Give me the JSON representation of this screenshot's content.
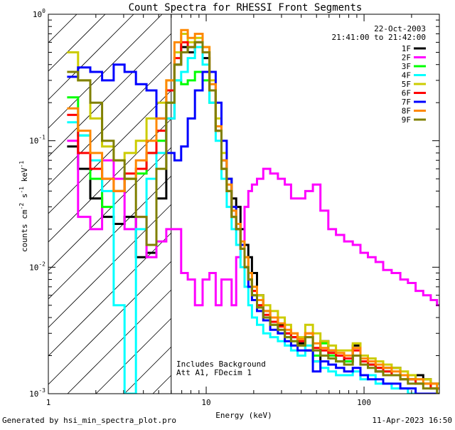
{
  "chart_data": {
    "type": "line",
    "title": "Count Spectra for RHESSI Front Segments",
    "xlabel": "Energy (keV)",
    "ylabel_parts": {
      "counts": "counts cm",
      "exp2": "-2",
      "s": " s",
      "exp1a": "-1",
      "kev": " keV",
      "exp1b": "-1"
    },
    "x_scale": "log",
    "y_scale": "log",
    "xlim": [
      1,
      300
    ],
    "ylim": [
      0.001,
      1
    ],
    "x_ticks": [
      {
        "value": 1,
        "label": "1"
      },
      {
        "value": 10,
        "label": "10"
      },
      {
        "value": 100,
        "label": "100"
      }
    ],
    "y_ticks": [
      {
        "value": 1,
        "base": "10",
        "exp": "0"
      },
      {
        "value": 0.1,
        "base": "10",
        "exp": "-1"
      },
      {
        "value": 0.01,
        "base": "10",
        "exp": "-2"
      },
      {
        "value": 0.001,
        "base": "10",
        "exp": "-3"
      }
    ],
    "date": "22-Oct-2003",
    "time_range": "21:41:00 to 21:42:00",
    "annotations": [
      "Includes Background",
      "Att A1, FDecim 1"
    ],
    "shaded_region": {
      "xmin": 1,
      "xmax": 6
    },
    "legend_position": "top-right",
    "footer_left": "Generated by hsi_min_spectra_plot.pro",
    "footer_right": "11-Apr-2023 16:50",
    "series": [
      {
        "name": "1F",
        "color": "#000000",
        "x": [
          1.4,
          1.7,
          2.0,
          2.4,
          2.8,
          3.3,
          3.9,
          4.5,
          5.2,
          6.0,
          6.6,
          7.3,
          8.0,
          9.0,
          10.0,
          11.0,
          12.0,
          13.0,
          14.0,
          15.0,
          16.0,
          17.0,
          18.0,
          19.0,
          20.0,
          22.0,
          24.0,
          27.0,
          30.0,
          33.0,
          36.0,
          40.0,
          45.0,
          50.0,
          56.0,
          63.0,
          70.0,
          80.0,
          90.0,
          100.0,
          112.0,
          125.0,
          140.0,
          160.0,
          180.0,
          200.0,
          225.0,
          250.0,
          280.0,
          300.0
        ],
        "y": [
          0.09,
          0.06,
          0.035,
          0.025,
          0.022,
          0.025,
          0.012,
          0.013,
          0.035,
          0.15,
          0.4,
          0.55,
          0.5,
          0.6,
          0.45,
          0.25,
          0.12,
          0.07,
          0.05,
          0.035,
          0.03,
          0.02,
          0.015,
          0.012,
          0.009,
          0.006,
          0.0045,
          0.004,
          0.0035,
          0.003,
          0.0028,
          0.0025,
          0.0022,
          0.0018,
          0.0026,
          0.0022,
          0.002,
          0.0018,
          0.0024,
          0.002,
          0.0017,
          0.0015,
          0.0016,
          0.0016,
          0.0014,
          0.0013,
          0.0014,
          0.0013,
          0.0012,
          0.0012
        ]
      },
      {
        "name": "2F",
        "color": "#ff00ff",
        "x": [
          1.4,
          1.7,
          2.0,
          2.4,
          2.8,
          3.3,
          3.9,
          4.5,
          5.2,
          6.0,
          6.6,
          7.3,
          8.0,
          9.0,
          10.0,
          11.0,
          12.0,
          13.0,
          14.0,
          15.0,
          16.0,
          17.0,
          18.0,
          19.0,
          20.0,
          22.0,
          24.0,
          27.0,
          30.0,
          33.0,
          36.0,
          40.0,
          45.0,
          50.0,
          56.0,
          63.0,
          70.0,
          80.0,
          90.0,
          100.0,
          112.0,
          125.0,
          140.0,
          160.0,
          180.0,
          200.0,
          225.0,
          250.0,
          280.0,
          300.0
        ],
        "y": [
          0.1,
          0.025,
          0.02,
          0.07,
          0.05,
          0.02,
          0.025,
          0.012,
          0.016,
          0.02,
          0.02,
          0.009,
          0.008,
          0.005,
          0.008,
          0.009,
          0.005,
          0.008,
          0.008,
          0.005,
          0.012,
          0.015,
          0.03,
          0.04,
          0.045,
          0.05,
          0.06,
          0.055,
          0.05,
          0.045,
          0.035,
          0.035,
          0.04,
          0.045,
          0.028,
          0.02,
          0.018,
          0.016,
          0.015,
          0.013,
          0.012,
          0.011,
          0.0095,
          0.009,
          0.008,
          0.0075,
          0.0065,
          0.006,
          0.0055,
          0.005
        ]
      },
      {
        "name": "3F",
        "color": "#00ff00",
        "x": [
          1.4,
          1.7,
          2.0,
          2.4,
          2.8,
          3.3,
          3.9,
          4.5,
          5.2,
          6.0,
          6.6,
          7.3,
          8.0,
          9.0,
          10.0,
          11.0,
          12.0,
          13.0,
          14.0,
          15.0,
          16.0,
          17.0,
          18.0,
          19.0,
          20.0,
          22.0,
          24.0,
          27.0,
          30.0,
          33.0,
          36.0,
          40.0,
          45.0,
          50.0,
          56.0,
          63.0,
          70.0,
          80.0,
          90.0,
          100.0,
          112.0,
          125.0,
          140.0,
          160.0,
          180.0,
          200.0,
          225.0,
          250.0,
          280.0,
          300.0
        ],
        "y": [
          0.22,
          0.11,
          0.05,
          0.03,
          0.04,
          0.05,
          0.055,
          0.08,
          0.1,
          0.2,
          0.3,
          0.28,
          0.3,
          0.35,
          0.3,
          0.2,
          0.12,
          0.06,
          0.04,
          0.025,
          0.02,
          0.015,
          0.01,
          0.008,
          0.006,
          0.005,
          0.004,
          0.0035,
          0.003,
          0.0028,
          0.0026,
          0.0024,
          0.0028,
          0.002,
          0.0025,
          0.002,
          0.0018,
          0.0018,
          0.002,
          0.0019,
          0.0017,
          0.0016,
          0.0015,
          0.0014,
          0.0013,
          0.0013,
          0.0012,
          0.0012,
          0.0011,
          0.0011
        ]
      },
      {
        "name": "4F",
        "color": "#00ffff",
        "x": [
          1.4,
          1.7,
          2.0,
          2.4,
          2.8,
          3.3,
          3.9,
          4.5,
          5.2,
          6.0,
          6.6,
          7.3,
          8.0,
          9.0,
          10.0,
          11.0,
          12.0,
          13.0,
          14.0,
          15.0,
          16.0,
          17.0,
          18.0,
          19.0,
          20.0,
          22.0,
          24.0,
          27.0,
          30.0,
          33.0,
          36.0,
          40.0,
          45.0,
          50.0,
          56.0,
          63.0,
          70.0,
          80.0,
          90.0,
          100.0,
          112.0,
          125.0,
          140.0,
          160.0,
          180.0,
          200.0,
          225.0,
          250.0,
          280.0,
          300.0
        ],
        "y": [
          0.14,
          0.11,
          0.07,
          0.04,
          0.005,
          0.001,
          0.02,
          0.05,
          0.08,
          0.15,
          0.3,
          0.35,
          0.45,
          0.55,
          0.4,
          0.2,
          0.1,
          0.05,
          0.03,
          0.02,
          0.015,
          0.01,
          0.007,
          0.005,
          0.004,
          0.0035,
          0.003,
          0.0028,
          0.0026,
          0.0024,
          0.0022,
          0.002,
          0.0024,
          0.0018,
          0.0016,
          0.0015,
          0.0014,
          0.0014,
          0.0015,
          0.0013,
          0.0014,
          0.0012,
          0.0012,
          0.0011,
          0.0011,
          0.001,
          0.001,
          0.001,
          0.001,
          0.001
        ]
      },
      {
        "name": "5F",
        "color": "#cccc00",
        "x": [
          1.4,
          1.7,
          2.0,
          2.4,
          2.8,
          3.3,
          3.9,
          4.5,
          5.2,
          6.0,
          6.6,
          7.3,
          8.0,
          9.0,
          10.0,
          11.0,
          12.0,
          13.0,
          14.0,
          15.0,
          16.0,
          17.0,
          18.0,
          19.0,
          20.0,
          22.0,
          24.0,
          27.0,
          30.0,
          33.0,
          36.0,
          40.0,
          45.0,
          50.0,
          56.0,
          63.0,
          70.0,
          80.0,
          90.0,
          100.0,
          112.0,
          125.0,
          140.0,
          160.0,
          180.0,
          200.0,
          225.0,
          250.0,
          280.0,
          300.0
        ],
        "y": [
          0.5,
          0.3,
          0.15,
          0.09,
          0.07,
          0.08,
          0.1,
          0.15,
          0.2,
          0.3,
          0.5,
          0.7,
          0.6,
          0.65,
          0.55,
          0.3,
          0.15,
          0.08,
          0.05,
          0.03,
          0.02,
          0.015,
          0.012,
          0.009,
          0.007,
          0.006,
          0.005,
          0.0045,
          0.004,
          0.0035,
          0.003,
          0.0028,
          0.0035,
          0.003,
          0.0026,
          0.0024,
          0.0022,
          0.0022,
          0.0025,
          0.002,
          0.0019,
          0.0018,
          0.0017,
          0.0016,
          0.0015,
          0.0014,
          0.0013,
          0.0013,
          0.0012,
          0.0012
        ]
      },
      {
        "name": "6F",
        "color": "#ff0000",
        "x": [
          1.4,
          1.7,
          2.0,
          2.4,
          2.8,
          3.3,
          3.9,
          4.5,
          5.2,
          6.0,
          6.6,
          7.3,
          8.0,
          9.0,
          10.0,
          11.0,
          12.0,
          13.0,
          14.0,
          15.0,
          16.0,
          17.0,
          18.0,
          19.0,
          20.0,
          22.0,
          24.0,
          27.0,
          30.0,
          33.0,
          36.0,
          40.0,
          45.0,
          50.0,
          56.0,
          63.0,
          70.0,
          80.0,
          90.0,
          100.0,
          112.0,
          125.0,
          140.0,
          160.0,
          180.0,
          200.0,
          225.0,
          250.0,
          280.0,
          300.0
        ],
        "y": [
          0.16,
          0.08,
          0.06,
          0.05,
          0.04,
          0.055,
          0.06,
          0.08,
          0.12,
          0.25,
          0.45,
          0.6,
          0.55,
          0.6,
          0.5,
          0.25,
          0.12,
          0.06,
          0.04,
          0.025,
          0.02,
          0.014,
          0.01,
          0.008,
          0.0065,
          0.005,
          0.0042,
          0.0037,
          0.0034,
          0.003,
          0.0028,
          0.0026,
          0.003,
          0.0023,
          0.0022,
          0.0021,
          0.002,
          0.0019,
          0.0022,
          0.0018,
          0.0017,
          0.0016,
          0.0015,
          0.0014,
          0.0013,
          0.0013,
          0.0012,
          0.0012,
          0.0011,
          0.0011
        ]
      },
      {
        "name": "7F",
        "color": "#0000ff",
        "x": [
          1.4,
          1.7,
          2.0,
          2.4,
          2.8,
          3.3,
          3.9,
          4.5,
          5.2,
          6.0,
          6.6,
          7.3,
          8.0,
          9.0,
          10.0,
          11.0,
          12.0,
          13.0,
          14.0,
          15.0,
          16.0,
          17.0,
          18.0,
          19.0,
          20.0,
          22.0,
          24.0,
          27.0,
          30.0,
          33.0,
          36.0,
          40.0,
          45.0,
          50.0,
          56.0,
          63.0,
          70.0,
          80.0,
          90.0,
          100.0,
          112.0,
          125.0,
          140.0,
          160.0,
          180.0,
          200.0,
          225.0,
          250.0,
          280.0,
          300.0
        ],
        "y": [
          0.32,
          0.38,
          0.35,
          0.3,
          0.4,
          0.35,
          0.28,
          0.25,
          0.15,
          0.08,
          0.07,
          0.09,
          0.15,
          0.25,
          0.35,
          0.35,
          0.2,
          0.1,
          0.05,
          0.03,
          0.02,
          0.015,
          0.01,
          0.007,
          0.0055,
          0.0045,
          0.0038,
          0.0032,
          0.003,
          0.0026,
          0.0024,
          0.0022,
          0.0022,
          0.0015,
          0.0018,
          0.0017,
          0.0016,
          0.0015,
          0.0016,
          0.0014,
          0.0013,
          0.0013,
          0.0012,
          0.0012,
          0.0011,
          0.0011,
          0.001,
          0.001,
          0.001,
          0.001
        ]
      },
      {
        "name": "8F",
        "color": "#ff8800",
        "x": [
          1.4,
          1.7,
          2.0,
          2.4,
          2.8,
          3.3,
          3.9,
          4.5,
          5.2,
          6.0,
          6.6,
          7.3,
          8.0,
          9.0,
          10.0,
          11.0,
          12.0,
          13.0,
          14.0,
          15.0,
          16.0,
          17.0,
          18.0,
          19.0,
          20.0,
          22.0,
          24.0,
          27.0,
          30.0,
          33.0,
          36.0,
          40.0,
          45.0,
          50.0,
          56.0,
          63.0,
          70.0,
          80.0,
          90.0,
          100.0,
          112.0,
          125.0,
          140.0,
          160.0,
          180.0,
          200.0,
          225.0,
          250.0,
          280.0,
          300.0
        ],
        "y": [
          0.18,
          0.12,
          0.08,
          0.05,
          0.04,
          0.05,
          0.07,
          0.1,
          0.15,
          0.3,
          0.6,
          0.75,
          0.65,
          0.7,
          0.55,
          0.28,
          0.13,
          0.07,
          0.045,
          0.028,
          0.022,
          0.016,
          0.012,
          0.009,
          0.007,
          0.0055,
          0.0045,
          0.004,
          0.0036,
          0.0032,
          0.003,
          0.0027,
          0.003,
          0.0025,
          0.0023,
          0.0022,
          0.0021,
          0.002,
          0.0023,
          0.0019,
          0.0018,
          0.0017,
          0.0016,
          0.0015,
          0.0014,
          0.0013,
          0.0013,
          0.0012,
          0.0012,
          0.0011
        ]
      },
      {
        "name": "9F",
        "color": "#808000",
        "x": [
          1.4,
          1.7,
          2.0,
          2.4,
          2.8,
          3.3,
          3.9,
          4.5,
          5.2,
          6.0,
          6.6,
          7.3,
          8.0,
          9.0,
          10.0,
          11.0,
          12.0,
          13.0,
          14.0,
          15.0,
          16.0,
          17.0,
          18.0,
          19.0,
          20.0,
          22.0,
          24.0,
          27.0,
          30.0,
          33.0,
          36.0,
          40.0,
          45.0,
          50.0,
          56.0,
          63.0,
          70.0,
          80.0,
          90.0,
          100.0,
          112.0,
          125.0,
          140.0,
          160.0,
          180.0,
          200.0,
          225.0,
          250.0,
          280.0,
          300.0
        ],
        "y": [
          0.35,
          0.3,
          0.2,
          0.1,
          0.07,
          0.05,
          0.025,
          0.015,
          0.06,
          0.2,
          0.4,
          0.5,
          0.55,
          0.6,
          0.5,
          0.25,
          0.12,
          0.06,
          0.04,
          0.025,
          0.02,
          0.014,
          0.01,
          0.008,
          0.006,
          0.0048,
          0.004,
          0.0035,
          0.0032,
          0.0028,
          0.0026,
          0.0024,
          0.0028,
          0.0022,
          0.002,
          0.0019,
          0.0018,
          0.0017,
          0.002,
          0.0017,
          0.0016,
          0.0015,
          0.0014,
          0.0014,
          0.0013,
          0.0012,
          0.0012,
          0.0011,
          0.0011,
          0.001
        ]
      }
    ]
  }
}
